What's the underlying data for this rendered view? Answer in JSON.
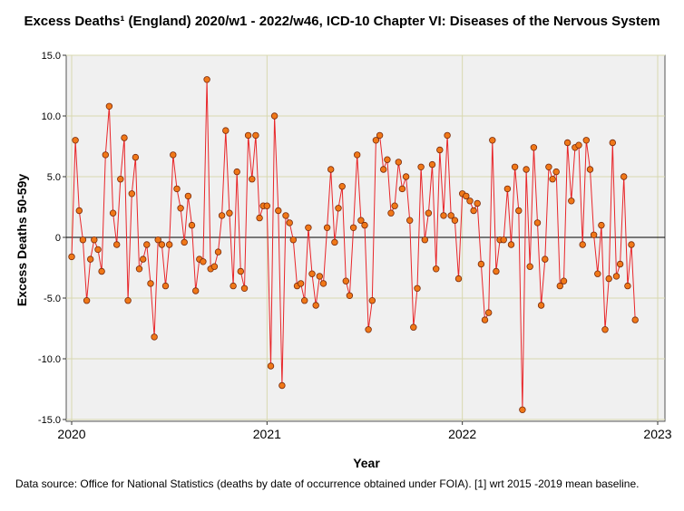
{
  "chart_data": {
    "type": "line",
    "title": "Excess Deaths¹ (England) 2020/w1 - 2022/w46, ICD-10 Chapter VI: Diseases of the Nervous System",
    "xlabel": "Year",
    "ylabel": "Excess Deaths 50-59y",
    "xlim": [
      2020,
      2023
    ],
    "ylim": [
      -15,
      15
    ],
    "x_ticks": [
      2020,
      2021,
      2022,
      2023
    ],
    "y_ticks": [
      15,
      10,
      5,
      0,
      -5,
      -10,
      -15
    ],
    "y_tick_labels": [
      "15.0",
      "10.0",
      "5.0",
      "0",
      "-5.0",
      "-10.0",
      "-15.0"
    ],
    "grid": true,
    "reference_line_y": 0,
    "series": [
      {
        "name": "Excess Deaths 50-59y",
        "color": "#e8262a",
        "marker_color": "#f07818",
        "x_start": 2020.0,
        "x_step": 0.019231,
        "values": [
          -1.6,
          8.0,
          2.2,
          -0.2,
          -5.2,
          -1.8,
          -0.2,
          -1.0,
          -2.8,
          6.8,
          10.8,
          2.0,
          -0.6,
          4.8,
          8.2,
          -5.2,
          3.6,
          6.6,
          -2.6,
          -1.8,
          -0.6,
          -3.8,
          -8.2,
          -0.2,
          -0.6,
          -4.0,
          -0.6,
          6.8,
          4.0,
          2.4,
          -0.4,
          3.4,
          1.0,
          -4.4,
          -1.8,
          -2.0,
          13.0,
          -2.6,
          -2.4,
          -1.2,
          1.8,
          8.8,
          2.0,
          -4.0,
          5.4,
          -2.8,
          -4.2,
          8.4,
          4.8,
          8.4,
          1.6,
          2.6,
          2.6,
          -10.6,
          10.0,
          2.2,
          -12.2,
          1.8,
          1.2,
          -0.2,
          -4.0,
          -3.8,
          -5.2,
          0.8,
          -3.0,
          -5.6,
          -3.2,
          -3.8,
          0.8,
          5.6,
          -0.4,
          2.4,
          4.2,
          -3.6,
          -4.8,
          0.8,
          6.8,
          1.4,
          1.0,
          -7.6,
          -5.2,
          8.0,
          8.4,
          5.6,
          6.4,
          2.0,
          2.6,
          6.2,
          4.0,
          5.0,
          1.4,
          -7.4,
          -4.2,
          5.8,
          -0.2,
          2.0,
          6.0,
          -2.6,
          7.2,
          1.8,
          8.4,
          1.8,
          1.4,
          -3.4,
          3.6,
          3.4,
          3.0,
          2.2,
          2.8,
          -2.2,
          -6.8,
          -6.2,
          8.0,
          -2.8,
          -0.2,
          -0.2,
          4.0,
          -0.6,
          5.8,
          2.2,
          -14.2,
          5.6,
          -2.4,
          7.4,
          1.2,
          -5.6,
          -1.8,
          5.8,
          4.8,
          5.4,
          -4.0,
          -3.6,
          7.8,
          3.0,
          7.4,
          7.6,
          -0.6,
          8.0,
          5.6,
          0.2,
          -3.0,
          1.0,
          -7.6,
          -3.4,
          7.8,
          -3.2,
          -2.2,
          5.0,
          -4.0,
          -0.6,
          -6.8
        ]
      }
    ]
  },
  "footnote": "Data source: Office for National Statistics (deaths by date of occurrence obtained under FOIA). [1] wrt 2015 -2019 mean baseline."
}
